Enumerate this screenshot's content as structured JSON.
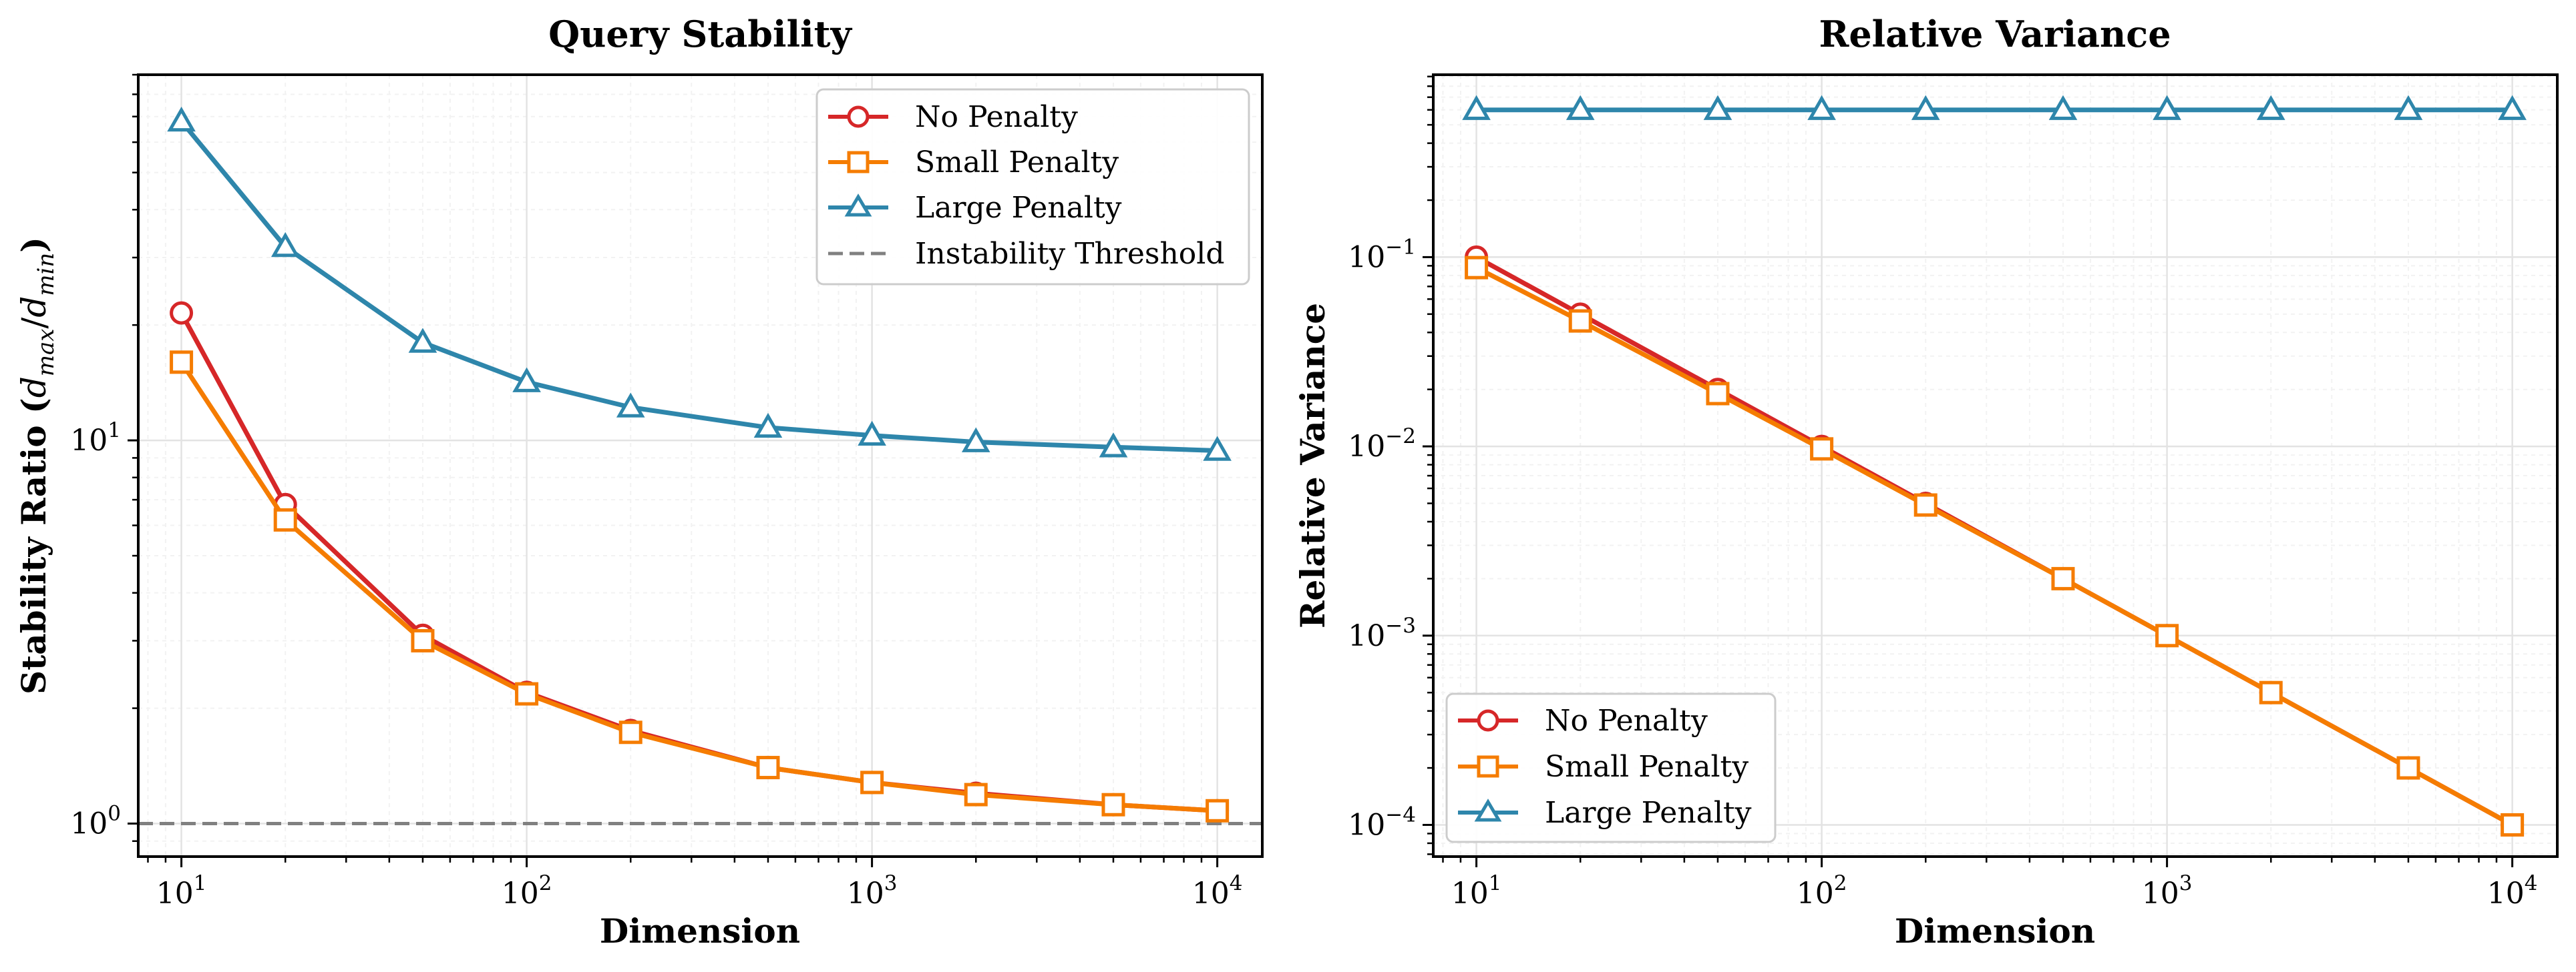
{
  "chart_data": [
    {
      "type": "line",
      "title": "Query Stability",
      "xlabel": "Dimension",
      "ylabel_prefix": "Stability Ratio (",
      "ylabel_math": {
        "d1": "d",
        "sub1": "max",
        "slash": "/",
        "d2": "d",
        "sub2": "min"
      },
      "ylabel_suffix": ")",
      "xscale": "log",
      "yscale": "log",
      "xlim": [
        7.5,
        13500
      ],
      "ylim": [
        0.82,
        90
      ],
      "grid": true,
      "legend_position": "top-right",
      "x_ticks": [
        {
          "value": 10,
          "base": "10",
          "exp": "1"
        },
        {
          "value": 100,
          "base": "10",
          "exp": "2"
        },
        {
          "value": 1000,
          "base": "10",
          "exp": "3"
        },
        {
          "value": 10000,
          "base": "10",
          "exp": "4"
        }
      ],
      "y_ticks": [
        {
          "value": 1,
          "base": "10",
          "exp": "0"
        },
        {
          "value": 10,
          "base": "10",
          "exp": "1"
        }
      ],
      "x": [
        10,
        20,
        50,
        100,
        200,
        500,
        1000,
        2000,
        5000,
        10000
      ],
      "series": [
        {
          "name": "No Penalty",
          "color": "#d62728",
          "marker": "circle",
          "values": [
            21.5,
            6.8,
            3.1,
            2.2,
            1.75,
            1.4,
            1.28,
            1.2,
            1.12,
            1.08
          ]
        },
        {
          "name": "Small Penalty",
          "color": "#f57c00",
          "marker": "square",
          "values": [
            16.0,
            6.2,
            3.0,
            2.18,
            1.73,
            1.4,
            1.28,
            1.19,
            1.12,
            1.08
          ]
        },
        {
          "name": "Large Penalty",
          "color": "#2e86ab",
          "marker": "triangle",
          "values": [
            68.0,
            32.0,
            18.0,
            14.2,
            12.2,
            10.8,
            10.3,
            9.9,
            9.6,
            9.4
          ]
        }
      ],
      "reference_lines": [
        {
          "name": "Instability Threshold",
          "y": 1.0,
          "color": "#808080",
          "style": "dashed"
        }
      ]
    },
    {
      "type": "line",
      "title": "Relative Variance",
      "xlabel": "Dimension",
      "ylabel": "Relative Variance",
      "xscale": "log",
      "yscale": "log",
      "xlim": [
        7.5,
        13500
      ],
      "ylim": [
        6.8e-05,
        0.92
      ],
      "grid": true,
      "legend_position": "bottom-left",
      "x_ticks": [
        {
          "value": 10,
          "base": "10",
          "exp": "1"
        },
        {
          "value": 100,
          "base": "10",
          "exp": "2"
        },
        {
          "value": 1000,
          "base": "10",
          "exp": "3"
        },
        {
          "value": 10000,
          "base": "10",
          "exp": "4"
        }
      ],
      "y_ticks": [
        {
          "value": 0.0001,
          "base": "10",
          "exp": "−4"
        },
        {
          "value": 0.001,
          "base": "10",
          "exp": "−3"
        },
        {
          "value": 0.01,
          "base": "10",
          "exp": "−2"
        },
        {
          "value": 0.1,
          "base": "10",
          "exp": "−1"
        }
      ],
      "x": [
        10,
        20,
        50,
        100,
        200,
        500,
        1000,
        2000,
        5000,
        10000
      ],
      "series": [
        {
          "name": "No Penalty",
          "color": "#d62728",
          "marker": "circle",
          "values": [
            0.1,
            0.05,
            0.02,
            0.01,
            0.005,
            0.002,
            0.001,
            0.0005,
            0.0002,
            0.0001
          ]
        },
        {
          "name": "Small Penalty",
          "color": "#f57c00",
          "marker": "square",
          "values": [
            0.088,
            0.046,
            0.019,
            0.0097,
            0.0049,
            0.002,
            0.001,
            0.0005,
            0.0002,
            0.0001
          ]
        },
        {
          "name": "Large Penalty",
          "color": "#2e86ab",
          "marker": "triangle",
          "values": [
            0.6,
            0.6,
            0.6,
            0.6,
            0.6,
            0.6,
            0.6,
            0.6,
            0.6,
            0.6
          ]
        }
      ],
      "reference_lines": []
    }
  ]
}
